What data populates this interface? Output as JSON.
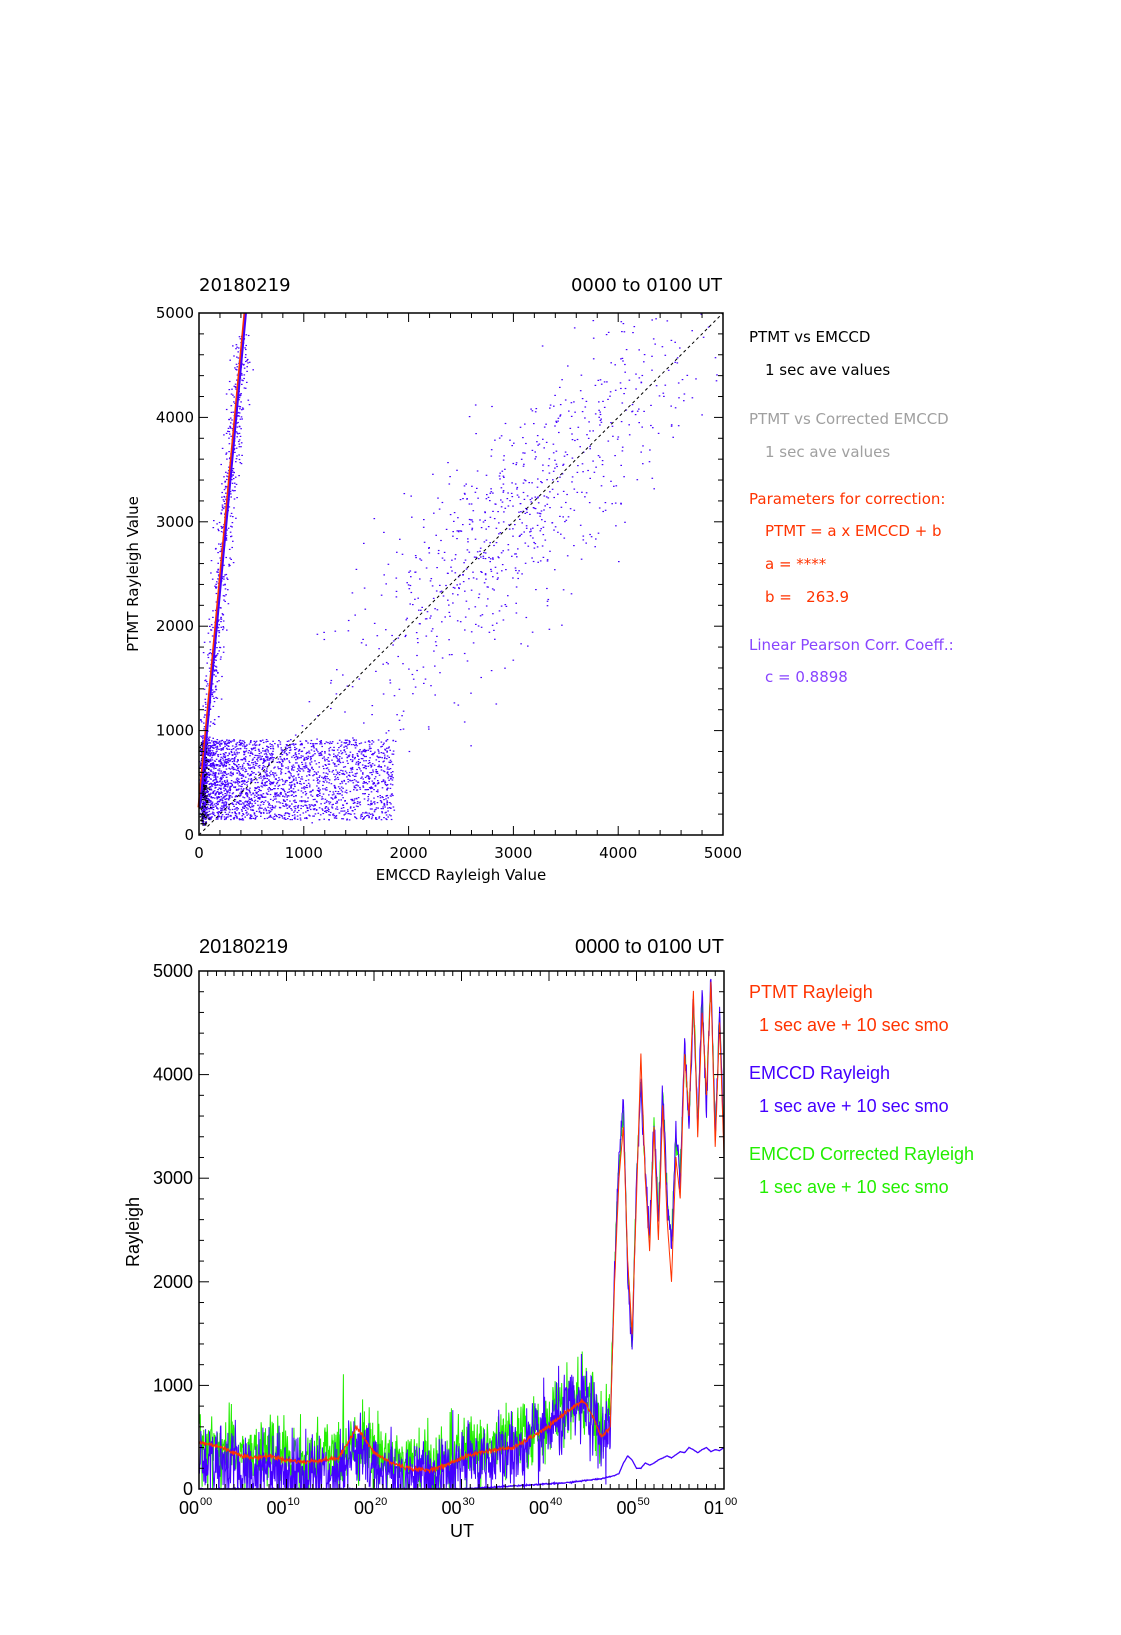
{
  "colors": {
    "axis": "#000000",
    "ptmt": "#ff3300",
    "emccd": "#4400ff",
    "corrected": "#22ee00",
    "gray": "#a0a0a0",
    "pearson": "#8844ff"
  },
  "chart_data": [
    {
      "type": "scatter",
      "title_left": "20180219",
      "title_right": "0000 to 0100 UT",
      "xlabel": "EMCCD Rayleigh Value",
      "ylabel": "PTMT Rayleigh Value",
      "xlim": [
        0,
        5000
      ],
      "ylim": [
        0,
        5000
      ],
      "xticks": [
        "0",
        "1000",
        "2000",
        "3000",
        "4000",
        "5000"
      ],
      "yticks": [
        "0",
        "1000",
        "2000",
        "3000",
        "4000",
        "5000"
      ],
      "legend": {
        "ptmt_vs_emccd": "PTMT vs EMCCD",
        "ave1": "1 sec ave values",
        "ptmt_vs_corrected": "PTMT vs Corrected EMCCD",
        "ave2": "1 sec ave values",
        "params_title": "Parameters for correction:",
        "formula": "PTMT = a x EMCCD + b",
        "a_line": "a = ****",
        "b_line": "b =   263.9",
        "pearson_title": "Linear Pearson Corr. Coeff.:",
        "c_line": "c = 0.8898"
      },
      "fit_line": {
        "slope": 10.8,
        "intercept": 263.9
      },
      "identity_line": {
        "from": [
          0,
          0
        ],
        "to": [
          5000,
          5000
        ]
      },
      "clusters": [
        {
          "name": "steep",
          "x_mean": 260,
          "x_sd": 70,
          "y_min": 300,
          "y_max": 4800,
          "n": 700
        },
        {
          "name": "diagonal",
          "x_mean": 3000,
          "x_sd": 900,
          "y_offset_sd": 550,
          "n": 900
        },
        {
          "name": "low_band",
          "x_min": 30,
          "x_max": 1850,
          "y_min": 150,
          "y_max": 920,
          "n": 2600
        },
        {
          "name": "origin",
          "x_mean": 40,
          "x_sd": 20,
          "y_min": 100,
          "y_max": 900,
          "n": 400
        }
      ]
    },
    {
      "type": "line",
      "title_left": "20180219",
      "title_right": "0000 to 0100 UT",
      "xlabel": "UT",
      "ylabel": "Rayleigh",
      "xlim": [
        0,
        60
      ],
      "ylim": [
        0,
        5000
      ],
      "xticks": [
        {
          "h": "00",
          "m": "00"
        },
        {
          "h": "00",
          "m": "10"
        },
        {
          "h": "00",
          "m": "20"
        },
        {
          "h": "00",
          "m": "30"
        },
        {
          "h": "00",
          "m": "40"
        },
        {
          "h": "00",
          "m": "50"
        },
        {
          "h": "01",
          "m": "00"
        }
      ],
      "yticks": [
        "0",
        "1000",
        "2000",
        "3000",
        "4000",
        "5000"
      ],
      "legend": {
        "ptmt": "PTMT Rayleigh",
        "ptmt_sub": "1 sec ave + 10 sec smo",
        "emccd": "EMCCD Rayleigh",
        "emccd_sub": "1 sec ave + 10 sec smo",
        "corrected": "EMCCD Corrected Rayleigh",
        "corrected_sub": "1 sec ave + 10 sec smo"
      },
      "envelope": {
        "minutes": [
          0,
          2,
          4,
          6,
          8,
          10,
          12,
          14,
          16,
          18,
          20,
          22,
          24,
          26,
          28,
          30,
          32,
          34,
          36,
          38,
          40,
          42,
          44,
          45,
          46,
          47,
          47.5,
          48,
          48.5,
          49,
          49.5,
          50,
          50.5,
          51,
          51.5,
          52,
          52.5,
          53,
          53.5,
          54,
          54.5,
          55,
          55.5,
          56,
          56.5,
          57,
          57.5,
          58,
          58.5,
          59,
          59.5,
          60
        ],
        "ptmt": [
          450,
          420,
          350,
          300,
          320,
          280,
          260,
          280,
          300,
          600,
          350,
          250,
          200,
          180,
          220,
          300,
          350,
          380,
          400,
          500,
          600,
          750,
          850,
          700,
          500,
          600,
          2000,
          3000,
          3500,
          2200,
          1500,
          2800,
          4200,
          3000,
          2300,
          3500,
          2400,
          3700,
          2600,
          2000,
          3200,
          2800,
          4200,
          3600,
          4800,
          3400,
          4600,
          3800,
          4900,
          3300,
          4500,
          3200
        ],
        "emccd": [
          300,
          280,
          200,
          150,
          250,
          180,
          130,
          160,
          200,
          380,
          220,
          150,
          120,
          100,
          150,
          220,
          280,
          300,
          350,
          420,
          580,
          720,
          820,
          680,
          450,
          620,
          2100,
          3200,
          3700,
          2100,
          1300,
          3000,
          3900,
          3100,
          2400,
          3600,
          2600,
          3900,
          2800,
          2300,
          3500,
          3000,
          4300,
          3500,
          4700,
          3500,
          4800,
          3700,
          5000,
          3400,
          4600,
          3300
        ],
        "corrected": [
          420,
          400,
          350,
          300,
          380,
          320,
          280,
          300,
          340,
          500,
          380,
          300,
          260,
          240,
          280,
          360,
          400,
          420,
          460,
          540,
          680,
          800,
          900,
          760,
          560,
          700,
          2150,
          3150,
          3650,
          2150,
          1400,
          2950,
          3950,
          3050,
          2450,
          3550,
          2650,
          3850,
          2850,
          2350,
          3450,
          3050,
          4250,
          3550,
          4700,
          3550,
          4700,
          3750,
          4950,
          3450,
          4600,
          3350
        ],
        "emccd_low": [
          0,
          0,
          0,
          0,
          0,
          0,
          0,
          0,
          0,
          0,
          0,
          0,
          0,
          0,
          0,
          0,
          10,
          20,
          30,
          40,
          50,
          60,
          80,
          90,
          100,
          120,
          130,
          150,
          250,
          320,
          280,
          200,
          200,
          250,
          230,
          250,
          280,
          300,
          320,
          300,
          330,
          360,
          350,
          400,
          380,
          350,
          380,
          400,
          360,
          380,
          370,
          400
        ]
      }
    }
  ]
}
